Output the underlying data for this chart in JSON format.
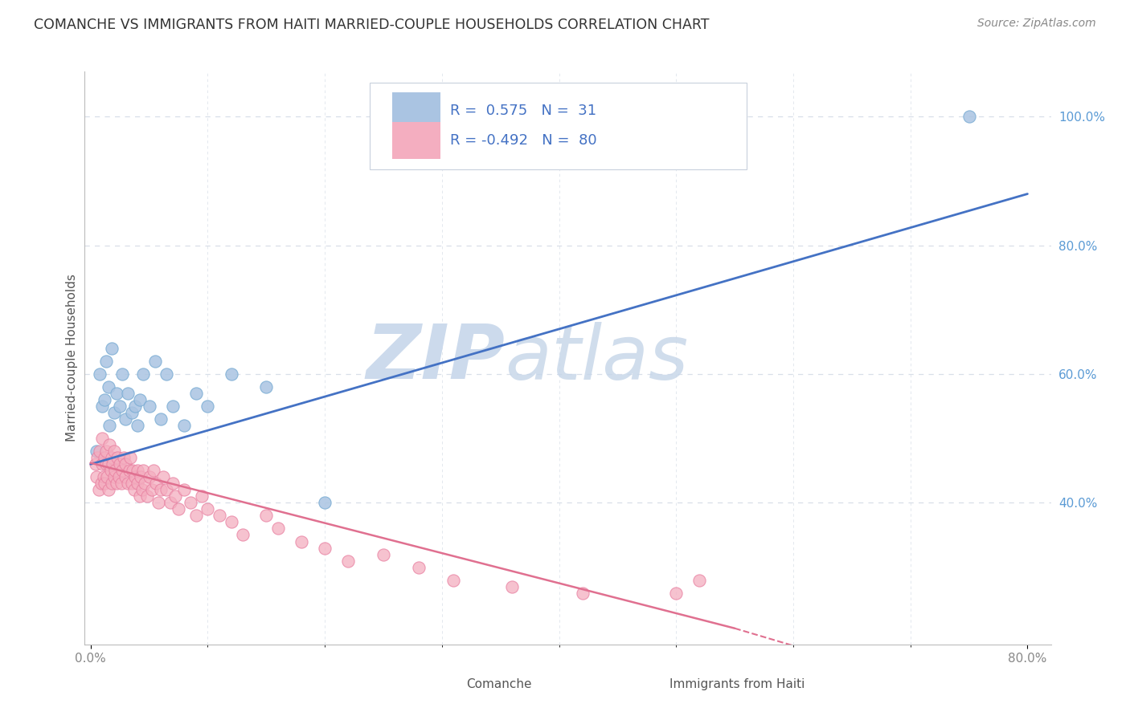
{
  "title": "COMANCHE VS IMMIGRANTS FROM HAITI MARRIED-COUPLE HOUSEHOLDS CORRELATION CHART",
  "source": "Source: ZipAtlas.com",
  "ylabel": "Married-couple Households",
  "xlabel_comanche": "Comanche",
  "xlabel_haiti": "Immigrants from Haiti",
  "xlim": [
    -0.005,
    0.82
  ],
  "ylim": [
    0.18,
    1.07
  ],
  "yticks_right": [
    0.4,
    0.6,
    0.8,
    1.0
  ],
  "ytick_right_labels": [
    "40.0%",
    "60.0%",
    "80.0%",
    "100.0%"
  ],
  "comanche_R": 0.575,
  "comanche_N": 31,
  "haiti_R": -0.492,
  "haiti_N": 80,
  "comanche_color": "#aac4e2",
  "comanche_edge_color": "#7badd4",
  "comanche_line_color": "#4472c4",
  "haiti_color": "#f4aec0",
  "haiti_edge_color": "#e87fa0",
  "haiti_line_color": "#e07090",
  "background_color": "#ffffff",
  "grid_color": "#d8dfe8",
  "title_color": "#333333",
  "source_color": "#888888",
  "legend_text_color": "#4472c4",
  "right_axis_color": "#5b9bd5",
  "comanche_x": [
    0.005,
    0.008,
    0.01,
    0.012,
    0.013,
    0.015,
    0.016,
    0.018,
    0.02,
    0.022,
    0.025,
    0.027,
    0.03,
    0.032,
    0.035,
    0.038,
    0.04,
    0.042,
    0.045,
    0.05,
    0.055,
    0.06,
    0.065,
    0.07,
    0.08,
    0.09,
    0.1,
    0.12,
    0.15,
    0.2,
    0.75
  ],
  "comanche_y": [
    0.48,
    0.6,
    0.55,
    0.56,
    0.62,
    0.58,
    0.52,
    0.64,
    0.54,
    0.57,
    0.55,
    0.6,
    0.53,
    0.57,
    0.54,
    0.55,
    0.52,
    0.56,
    0.6,
    0.55,
    0.62,
    0.53,
    0.6,
    0.55,
    0.52,
    0.57,
    0.55,
    0.6,
    0.58,
    0.4,
    1.0
  ],
  "haiti_x": [
    0.004,
    0.005,
    0.006,
    0.007,
    0.008,
    0.009,
    0.01,
    0.01,
    0.011,
    0.012,
    0.012,
    0.013,
    0.013,
    0.014,
    0.015,
    0.015,
    0.016,
    0.017,
    0.018,
    0.018,
    0.019,
    0.02,
    0.02,
    0.021,
    0.022,
    0.023,
    0.024,
    0.025,
    0.026,
    0.027,
    0.028,
    0.03,
    0.03,
    0.032,
    0.033,
    0.034,
    0.035,
    0.036,
    0.037,
    0.038,
    0.04,
    0.04,
    0.042,
    0.043,
    0.044,
    0.045,
    0.046,
    0.048,
    0.05,
    0.052,
    0.054,
    0.056,
    0.058,
    0.06,
    0.062,
    0.065,
    0.068,
    0.07,
    0.072,
    0.075,
    0.08,
    0.085,
    0.09,
    0.095,
    0.1,
    0.11,
    0.12,
    0.13,
    0.15,
    0.16,
    0.18,
    0.2,
    0.22,
    0.25,
    0.28,
    0.31,
    0.36,
    0.42,
    0.5,
    0.52
  ],
  "haiti_y": [
    0.46,
    0.44,
    0.47,
    0.42,
    0.48,
    0.43,
    0.46,
    0.5,
    0.44,
    0.47,
    0.43,
    0.46,
    0.48,
    0.44,
    0.46,
    0.42,
    0.49,
    0.45,
    0.47,
    0.43,
    0.46,
    0.44,
    0.48,
    0.45,
    0.43,
    0.47,
    0.44,
    0.46,
    0.43,
    0.45,
    0.47,
    0.44,
    0.46,
    0.43,
    0.45,
    0.47,
    0.43,
    0.45,
    0.42,
    0.44,
    0.43,
    0.45,
    0.41,
    0.44,
    0.42,
    0.45,
    0.43,
    0.41,
    0.44,
    0.42,
    0.45,
    0.43,
    0.4,
    0.42,
    0.44,
    0.42,
    0.4,
    0.43,
    0.41,
    0.39,
    0.42,
    0.4,
    0.38,
    0.41,
    0.39,
    0.38,
    0.37,
    0.35,
    0.38,
    0.36,
    0.34,
    0.33,
    0.31,
    0.32,
    0.3,
    0.28,
    0.27,
    0.26,
    0.26,
    0.28
  ]
}
